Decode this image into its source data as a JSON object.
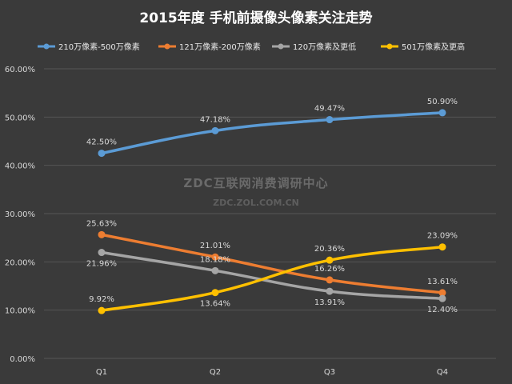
{
  "chart_data": {
    "type": "line",
    "title": "2015年度 手机前摄像头像素关注走势",
    "categories": [
      "Q1",
      "Q2",
      "Q3",
      "Q4"
    ],
    "ylim": [
      0,
      60
    ],
    "yticks": [
      "0.00%",
      "10.00%",
      "20.00%",
      "30.00%",
      "40.00%",
      "50.00%",
      "60.00%"
    ],
    "series": [
      {
        "name": "210万像素-500万像素",
        "color": "#5b9bd5",
        "values": [
          42.5,
          47.18,
          49.47,
          50.9
        ],
        "labels": [
          "42.50%",
          "47.18%",
          "49.47%",
          "50.90%"
        ]
      },
      {
        "name": "121万像素-200万像素",
        "color": "#ed7d31",
        "values": [
          25.63,
          21.01,
          16.26,
          13.61
        ],
        "labels": [
          "25.63%",
          "21.01%",
          "16.26%",
          "13.61%"
        ]
      },
      {
        "name": "120万像素及更低",
        "color": "#a5a5a5",
        "values": [
          21.96,
          18.18,
          13.91,
          12.4
        ],
        "labels": [
          "21.96%",
          "18.18%",
          "13.91%",
          "12.40%"
        ]
      },
      {
        "name": "501万像素及更高",
        "color": "#ffc000",
        "values": [
          9.92,
          13.64,
          20.36,
          23.09
        ],
        "labels": [
          "9.92%",
          "13.64%",
          "20.36%",
          "23.09%"
        ]
      }
    ],
    "watermark": {
      "line1": "ZDC互联网消费调研中心",
      "line2": "ZDC.ZOL.COM.CN"
    }
  }
}
